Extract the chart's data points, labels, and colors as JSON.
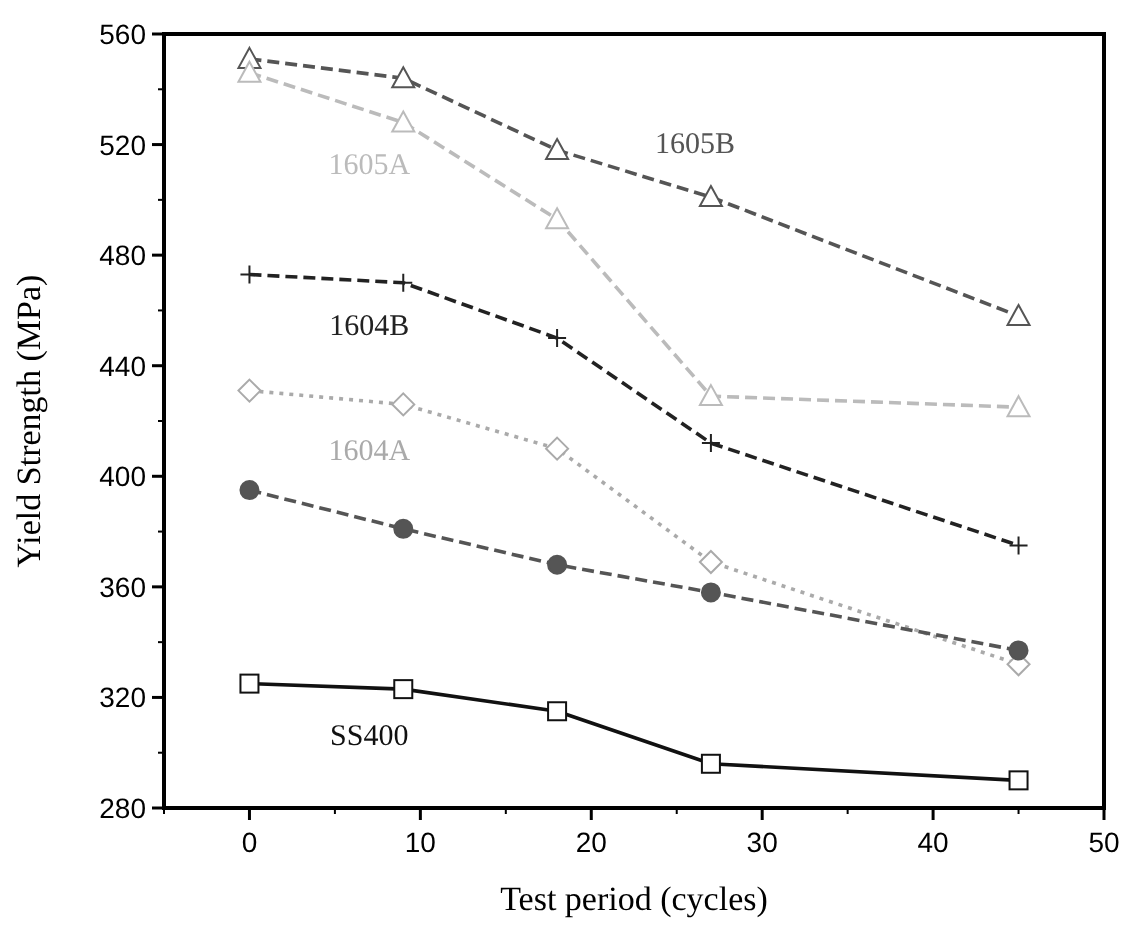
{
  "chart_data": {
    "type": "line",
    "xlabel": "Test period (cycles)",
    "ylabel": "Yield Strength (MPa)",
    "x": [
      0,
      9,
      18,
      27,
      45
    ],
    "series": [
      {
        "name": "1605B",
        "color": "#555555",
        "values": [
          551,
          544,
          518,
          501,
          458
        ],
        "marker": "triangle",
        "line_style": "dashed"
      },
      {
        "name": "1605A",
        "color": "#bbbbbb",
        "values": [
          546,
          528,
          493,
          429,
          425
        ],
        "marker": "triangle",
        "line_style": "dashed"
      },
      {
        "name": "1604B",
        "color": "#222222",
        "values": [
          473,
          470,
          450,
          412,
          375
        ],
        "marker": "cross",
        "line_style": "dashed"
      },
      {
        "name": "1604A",
        "color": "#aaaaaa",
        "values": [
          431,
          426,
          410,
          369,
          332
        ],
        "marker": "diamond",
        "line_style": "dotted"
      },
      {
        "color": "#555555",
        "values": [
          395,
          381,
          368,
          358,
          337
        ],
        "marker": "circle",
        "line_style": "dashed"
      },
      {
        "name": "SS400",
        "color": "#111111",
        "values": [
          325,
          323,
          315,
          296,
          290
        ],
        "marker": "square",
        "line_style": "solid"
      }
    ],
    "xlim": [
      -5,
      50
    ],
    "xticks": [
      0,
      10,
      20,
      30,
      40,
      50
    ],
    "ylim": [
      280,
      560
    ],
    "yticks": [
      280,
      320,
      360,
      400,
      440,
      480,
      520,
      560
    ],
    "grid": false
  }
}
